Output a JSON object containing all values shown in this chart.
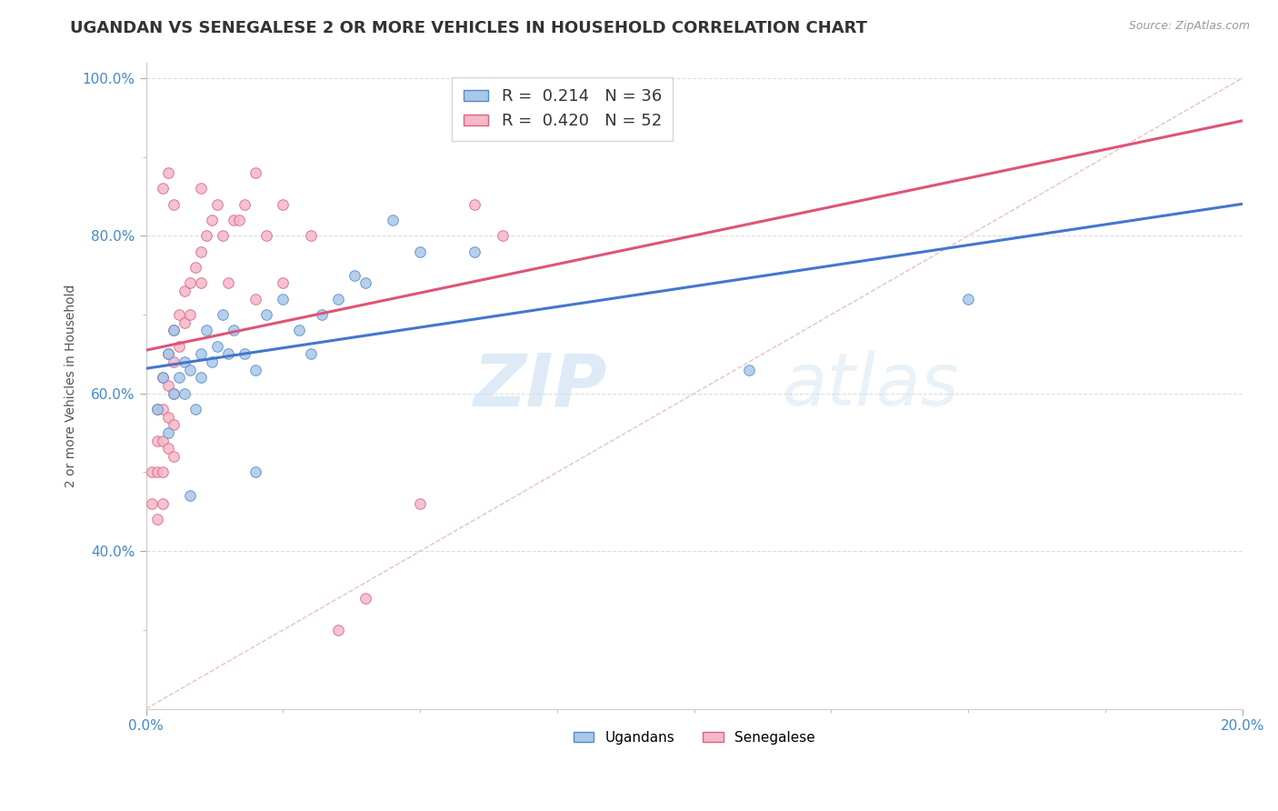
{
  "title": "UGANDAN VS SENEGALESE 2 OR MORE VEHICLES IN HOUSEHOLD CORRELATION CHART",
  "source": "Source: ZipAtlas.com",
  "xlabel": "",
  "ylabel": "2 or more Vehicles in Household",
  "xlim": [
    0.0,
    0.2
  ],
  "ylim": [
    0.2,
    1.02
  ],
  "xtick_labels": [
    "0.0%",
    "20.0%"
  ],
  "xtick_vals": [
    0.0,
    0.2
  ],
  "ytick_labels": [
    "40.0%",
    "60.0%",
    "80.0%",
    "100.0%"
  ],
  "ytick_values": [
    0.4,
    0.6,
    0.8,
    1.0
  ],
  "legend_label1": "Ugandans",
  "legend_label2": "Senegalese",
  "ugandan_color": "#a8c8e8",
  "senegalese_color": "#f4b8c8",
  "ugandan_edge": "#5588cc",
  "senegalese_edge": "#e06080",
  "watermark_zip": "ZIP",
  "watermark_atlas": "atlas",
  "R_ugandan": "0.214",
  "N_ugandan": "36",
  "R_senegalese": "0.420",
  "N_senegalese": "52",
  "ugandan_x": [
    0.002,
    0.003,
    0.004,
    0.004,
    0.005,
    0.005,
    0.006,
    0.007,
    0.007,
    0.008,
    0.009,
    0.01,
    0.01,
    0.011,
    0.012,
    0.013,
    0.014,
    0.015,
    0.016,
    0.018,
    0.02,
    0.022,
    0.025,
    0.028,
    0.03,
    0.032,
    0.035,
    0.038,
    0.04,
    0.045,
    0.05,
    0.06,
    0.11,
    0.15,
    0.008,
    0.02
  ],
  "ugandan_y": [
    0.58,
    0.62,
    0.55,
    0.65,
    0.6,
    0.68,
    0.62,
    0.6,
    0.64,
    0.63,
    0.58,
    0.62,
    0.65,
    0.68,
    0.64,
    0.66,
    0.7,
    0.65,
    0.68,
    0.65,
    0.63,
    0.7,
    0.72,
    0.68,
    0.65,
    0.7,
    0.72,
    0.75,
    0.74,
    0.82,
    0.78,
    0.78,
    0.63,
    0.72,
    0.47,
    0.5
  ],
  "senegalese_x": [
    0.001,
    0.001,
    0.002,
    0.002,
    0.002,
    0.002,
    0.003,
    0.003,
    0.003,
    0.003,
    0.003,
    0.004,
    0.004,
    0.004,
    0.004,
    0.005,
    0.005,
    0.005,
    0.005,
    0.005,
    0.006,
    0.006,
    0.007,
    0.007,
    0.008,
    0.008,
    0.009,
    0.01,
    0.01,
    0.011,
    0.012,
    0.013,
    0.014,
    0.015,
    0.016,
    0.017,
    0.018,
    0.02,
    0.022,
    0.025,
    0.03,
    0.035,
    0.04,
    0.05,
    0.06,
    0.065,
    0.003,
    0.004,
    0.005,
    0.01,
    0.02,
    0.025
  ],
  "senegalese_y": [
    0.5,
    0.46,
    0.58,
    0.54,
    0.5,
    0.44,
    0.62,
    0.58,
    0.54,
    0.5,
    0.46,
    0.65,
    0.61,
    0.57,
    0.53,
    0.68,
    0.64,
    0.6,
    0.56,
    0.52,
    0.7,
    0.66,
    0.73,
    0.69,
    0.74,
    0.7,
    0.76,
    0.78,
    0.74,
    0.8,
    0.82,
    0.84,
    0.8,
    0.74,
    0.82,
    0.82,
    0.84,
    0.72,
    0.8,
    0.84,
    0.8,
    0.3,
    0.34,
    0.46,
    0.84,
    0.8,
    0.86,
    0.88,
    0.84,
    0.86,
    0.88,
    0.74
  ],
  "diag_line_x": [
    0.0,
    0.2
  ],
  "diag_line_y": [
    0.2,
    1.0
  ],
  "title_fontsize": 13,
  "axis_fontsize": 10,
  "tick_fontsize": 11,
  "marker_size": 70
}
